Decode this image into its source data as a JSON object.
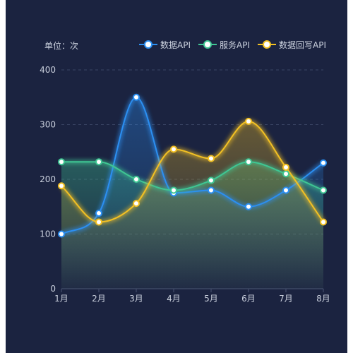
{
  "chart_data": {
    "type": "line",
    "unit_label": "单位：次",
    "categories": [
      "1月",
      "2月",
      "3月",
      "4月",
      "5月",
      "6月",
      "7月",
      "8月"
    ],
    "ylim": [
      0,
      400
    ],
    "yticks": [
      "0",
      "100",
      "200",
      "300",
      "400"
    ],
    "grid": true,
    "legend_position": "top-right",
    "smooth": true,
    "area_fill": true,
    "series": [
      {
        "name": "数据API",
        "color": "#2b8ff2",
        "values": [
          100,
          138,
          350,
          175,
          180,
          150,
          180,
          230
        ]
      },
      {
        "name": "服务API",
        "color": "#3fc693",
        "values": [
          232,
          232,
          200,
          180,
          198,
          232,
          210,
          180
        ]
      },
      {
        "name": "数据回写API",
        "color": "#f2c023",
        "values": [
          188,
          122,
          156,
          255,
          238,
          306,
          222,
          122
        ]
      }
    ]
  }
}
